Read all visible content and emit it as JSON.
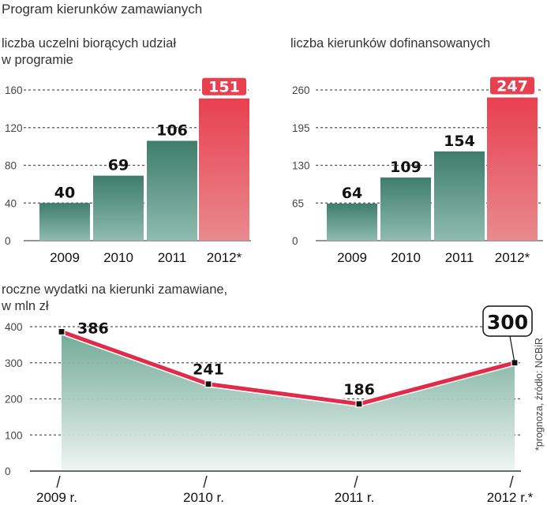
{
  "title": "Program kierunków zamawianych",
  "source_note": "*prognoza, źródło: NCBiR",
  "colors": {
    "bar": "#5f9e8c",
    "bar_top": "#3f7d6b",
    "bar_highlight": "#e8404f",
    "line": "#e02b4a",
    "area": "#7fb3a1"
  },
  "chart_data": [
    {
      "type": "bar",
      "title": "liczba uczelni biorących udział w programie",
      "title_lines": [
        "liczba uczelni biorących udział",
        "w programie"
      ],
      "categories": [
        "2009",
        "2010",
        "2011",
        "2012*"
      ],
      "values": [
        40,
        69,
        106,
        151
      ],
      "value_labels": [
        "40",
        "69",
        "106",
        "151"
      ],
      "highlight_index": 3,
      "yticks": [
        0,
        40,
        80,
        120,
        160
      ],
      "ytick_labels": [
        "0",
        "40",
        "80",
        "120",
        "160"
      ],
      "ylim": [
        0,
        160
      ],
      "grid": true
    },
    {
      "type": "bar",
      "title": "liczba kierunków dofinansowanych",
      "title_lines": [
        "liczba kierunków dofinansowanych"
      ],
      "categories": [
        "2009",
        "2010",
        "2011",
        "2012*"
      ],
      "values": [
        64,
        109,
        154,
        247
      ],
      "value_labels": [
        "64",
        "109",
        "154",
        "247"
      ],
      "highlight_index": 3,
      "yticks": [
        0,
        65,
        130,
        195,
        260
      ],
      "ytick_labels": [
        "0",
        "65",
        "130",
        "195",
        "260"
      ],
      "ylim": [
        0,
        260
      ],
      "grid": true
    },
    {
      "type": "area",
      "title": "roczne wydatki na kierunki zamawiane, w mln zł",
      "title_lines": [
        "roczne wydatki na kierunki zamawiane,",
        "w mln zł"
      ],
      "categories": [
        "2009 r.",
        "2010 r.",
        "2011 r.",
        "2012 r.*"
      ],
      "values": [
        386,
        241,
        186,
        300
      ],
      "value_labels": [
        "386",
        "241",
        "186",
        "300"
      ],
      "highlight_index": 3,
      "yticks": [
        0,
        100,
        200,
        300,
        400
      ],
      "ytick_labels": [
        "0",
        "100",
        "200",
        "300",
        "400"
      ],
      "ylim": [
        0,
        400
      ],
      "grid": true
    }
  ]
}
